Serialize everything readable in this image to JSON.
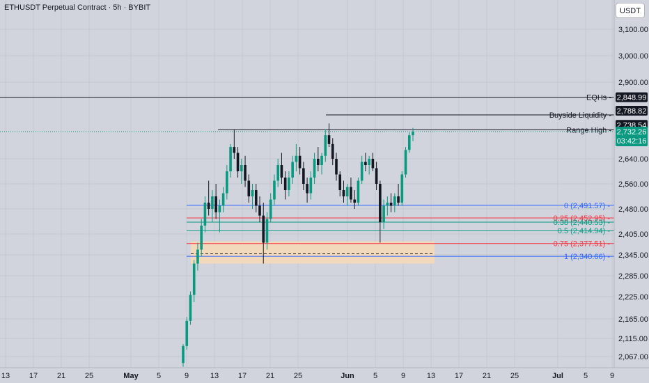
{
  "header": {
    "title": "ETHUSDT Perpetual Contract · 5h · BYBIT",
    "currency_button": "USDT"
  },
  "colors": {
    "background": "#d1d4dc",
    "grid": "#c5c8d1",
    "up_candle": "#089981",
    "down_candle": "#131722",
    "fib_0": "#2962ff",
    "fib_025": "#f23645",
    "fib_038": "#089981",
    "fib_05": "#089981",
    "fib_075": "#f23645",
    "fib_1": "#2962ff",
    "zone_fill": "#f6d9b8",
    "last_price_tag": "#089981"
  },
  "chart_data": {
    "type": "candlestick",
    "symbol": "ETHUSDT Perpetual Contract",
    "timeframe": "5h",
    "exchange": "BYBIT",
    "y_axis": {
      "ticks": [
        "3,100.00",
        "3,000.00",
        "2,900.00",
        "2,640.00",
        "2,560.00",
        "2,480.00",
        "2,405.00",
        "2,345.00",
        "2,285.00",
        "2,225.00",
        "2,165.00",
        "2,115.00",
        "2,067.00"
      ]
    },
    "x_axis": {
      "ticks": [
        "13",
        "17",
        "21",
        "25",
        "May",
        "5",
        "9",
        "13",
        "17",
        "21",
        "25",
        "Jun",
        "5",
        "9",
        "13",
        "17",
        "21",
        "25",
        "Jul",
        "5",
        "9"
      ]
    },
    "ohlc": [
      [
        2050,
        2100,
        2040,
        2095
      ],
      [
        2095,
        2170,
        2085,
        2160
      ],
      [
        2160,
        2240,
        2150,
        2230
      ],
      [
        2230,
        2330,
        2210,
        2320
      ],
      [
        2320,
        2380,
        2300,
        2360
      ],
      [
        2360,
        2450,
        2340,
        2430
      ],
      [
        2430,
        2520,
        2410,
        2500
      ],
      [
        2500,
        2570,
        2460,
        2480
      ],
      [
        2480,
        2540,
        2440,
        2520
      ],
      [
        2520,
        2560,
        2450,
        2470
      ],
      [
        2470,
        2510,
        2410,
        2490
      ],
      [
        2490,
        2550,
        2470,
        2530
      ],
      [
        2530,
        2620,
        2510,
        2600
      ],
      [
        2600,
        2690,
        2580,
        2680
      ],
      [
        2680,
        2740,
        2640,
        2660
      ],
      [
        2660,
        2680,
        2580,
        2600
      ],
      [
        2600,
        2640,
        2560,
        2620
      ],
      [
        2620,
        2650,
        2550,
        2570
      ],
      [
        2570,
        2590,
        2500,
        2520
      ],
      [
        2520,
        2560,
        2480,
        2540
      ],
      [
        2540,
        2560,
        2470,
        2490
      ],
      [
        2490,
        2520,
        2440,
        2460
      ],
      [
        2460,
        2500,
        2320,
        2380
      ],
      [
        2380,
        2470,
        2360,
        2450
      ],
      [
        2450,
        2530,
        2440,
        2510
      ],
      [
        2510,
        2590,
        2490,
        2570
      ],
      [
        2570,
        2640,
        2550,
        2620
      ],
      [
        2620,
        2660,
        2560,
        2580
      ],
      [
        2580,
        2600,
        2510,
        2540
      ],
      [
        2540,
        2600,
        2520,
        2580
      ],
      [
        2580,
        2650,
        2560,
        2630
      ],
      [
        2630,
        2690,
        2600,
        2650
      ],
      [
        2650,
        2680,
        2590,
        2610
      ],
      [
        2610,
        2630,
        2540,
        2560
      ],
      [
        2560,
        2580,
        2500,
        2530
      ],
      [
        2530,
        2600,
        2510,
        2580
      ],
      [
        2580,
        2660,
        2560,
        2640
      ],
      [
        2640,
        2680,
        2600,
        2620
      ],
      [
        2620,
        2660,
        2590,
        2650
      ],
      [
        2650,
        2740,
        2630,
        2720
      ],
      [
        2720,
        2760,
        2680,
        2690
      ],
      [
        2690,
        2710,
        2620,
        2640
      ],
      [
        2640,
        2660,
        2570,
        2590
      ],
      [
        2590,
        2600,
        2520,
        2540
      ],
      [
        2540,
        2570,
        2500,
        2520
      ],
      [
        2520,
        2560,
        2490,
        2550
      ],
      [
        2550,
        2580,
        2500,
        2510
      ],
      [
        2510,
        2540,
        2480,
        2500
      ],
      [
        2500,
        2580,
        2490,
        2570
      ],
      [
        2570,
        2650,
        2560,
        2630
      ],
      [
        2630,
        2660,
        2600,
        2620
      ],
      [
        2620,
        2650,
        2590,
        2640
      ],
      [
        2640,
        2660,
        2600,
        2610
      ],
      [
        2610,
        2630,
        2540,
        2560
      ],
      [
        2560,
        2570,
        2380,
        2440
      ],
      [
        2440,
        2510,
        2420,
        2490
      ],
      [
        2490,
        2520,
        2460,
        2500
      ],
      [
        2500,
        2530,
        2470,
        2490
      ],
      [
        2490,
        2530,
        2470,
        2520
      ],
      [
        2520,
        2560,
        2490,
        2500
      ],
      [
        2500,
        2600,
        2490,
        2590
      ],
      [
        2590,
        2680,
        2580,
        2670
      ],
      [
        2670,
        2730,
        2660,
        2720
      ],
      [
        2720,
        2745,
        2700,
        2732
      ]
    ],
    "levels": [
      {
        "label": "EQHs",
        "value": 2848.99,
        "value_label": "2,848.99"
      },
      {
        "label": "Buyside Liquidity",
        "value": 2788.82,
        "value_label": "2,788.82"
      },
      {
        "label": "Range High",
        "value": 2738.54,
        "value_label": "2,738.54"
      }
    ],
    "fib_levels": [
      {
        "label": "0 (2,491.57)",
        "value": 2491.57
      },
      {
        "label": "0.25 (2,452.95)",
        "value": 2452.95
      },
      {
        "label": "0.38 (2,440.53)",
        "value": 2440.53
      },
      {
        "label": "0.5 (2,414.94)",
        "value": 2414.94
      },
      {
        "label": "0.75 (2,377.51)",
        "value": 2377.51
      },
      {
        "label": "1 (2,340.66)",
        "value": 2340.66
      }
    ],
    "last_price": {
      "value": 2732.26,
      "label": "2,732.26",
      "countdown": "03:42:16"
    }
  }
}
